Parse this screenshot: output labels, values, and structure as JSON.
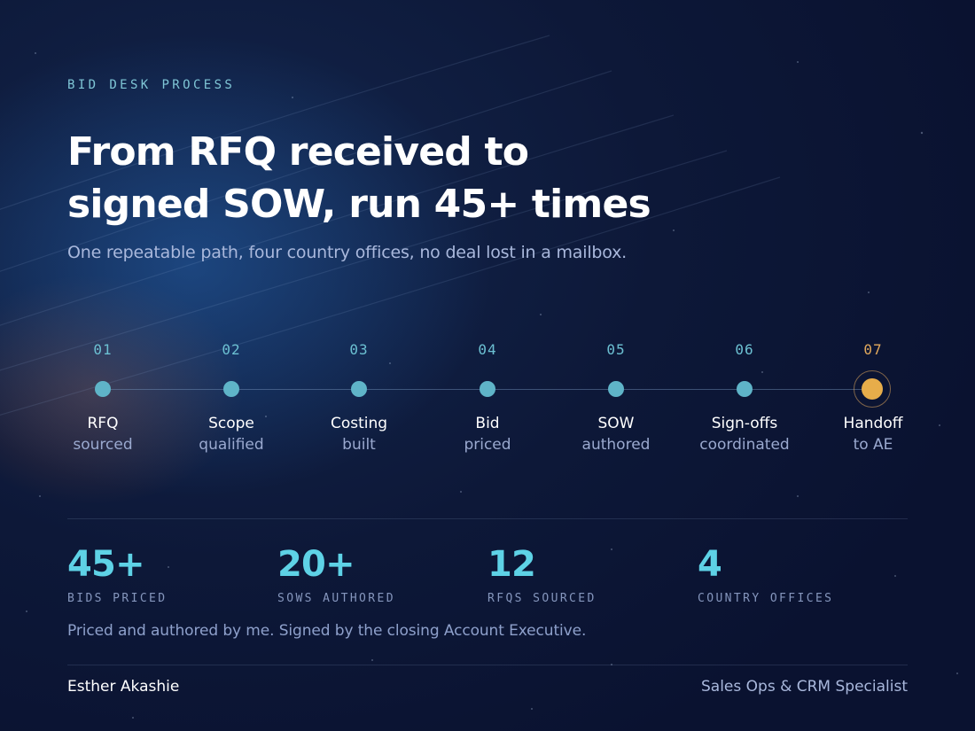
{
  "eyebrow": "BID DESK PROCESS",
  "title": {
    "line1": "From RFQ received to",
    "line2": "signed SOW, run 45+ times"
  },
  "subtitle": "One repeatable path, four country offices, no deal lost in a mailbox.",
  "steps": [
    {
      "num": "01",
      "line1": "RFQ",
      "line2": "sourced"
    },
    {
      "num": "02",
      "line1": "Scope",
      "line2": "qualified"
    },
    {
      "num": "03",
      "line1": "Costing",
      "line2": "built"
    },
    {
      "num": "04",
      "line1": "Bid",
      "line2": "priced"
    },
    {
      "num": "05",
      "line1": "SOW",
      "line2": "authored"
    },
    {
      "num": "06",
      "line1": "Sign-offs",
      "line2": "coordinated"
    },
    {
      "num": "07",
      "line1": "Handoff",
      "line2": "to AE"
    }
  ],
  "stats": [
    {
      "value": "45+",
      "label": "BIDS PRICED"
    },
    {
      "value": "20+",
      "label": "SOWS AUTHORED"
    },
    {
      "value": "12",
      "label": "RFQS SOURCED"
    },
    {
      "value": "4",
      "label": "COUNTRY OFFICES"
    }
  ],
  "note": "Priced and authored by me. Signed by the closing Account Executive.",
  "footer": {
    "name": "Esther Akashie",
    "role": "Sales Ops & CRM Specialist"
  },
  "colors": {
    "background": "#0b1431",
    "accent_cyan": "#5ed2e6",
    "node_teal": "#5fb4c8",
    "final_gold": "#e7ad4a"
  }
}
